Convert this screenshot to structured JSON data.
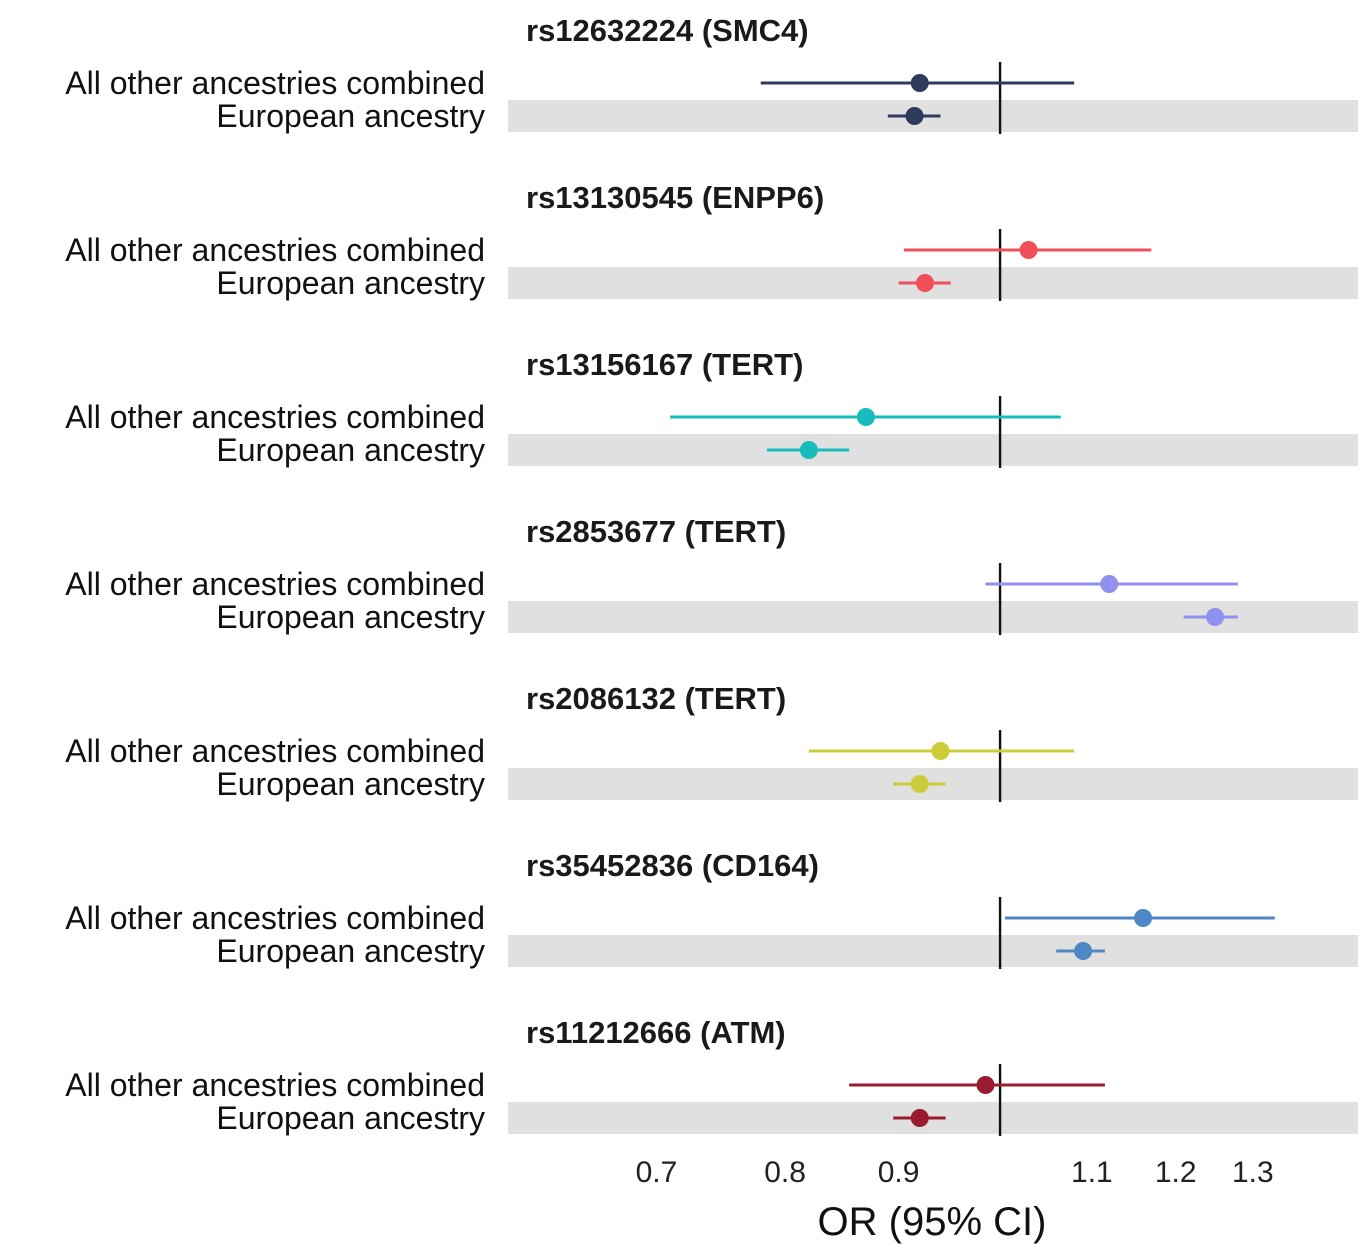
{
  "chart_data": {
    "type": "forest",
    "xlabel": "OR (95% CI)",
    "x_scale": "log",
    "xlim": [
      0.6,
      1.45
    ],
    "reference_line": 1.0,
    "x_ticks": [
      0.7,
      0.8,
      0.9,
      1.1,
      1.2,
      1.3
    ],
    "x_tick_labels": [
      "0.7",
      "0.8",
      "0.9",
      "1.1",
      "1.2",
      "1.3"
    ],
    "row_labels": [
      "All other ancestries combined",
      "European ancestry"
    ],
    "shaded_row": "European ancestry",
    "panels": [
      {
        "title": "rs12632224 (SMC4)",
        "color": "#2e3a5c",
        "rows": [
          {
            "group": "All other ancestries combined",
            "or": 0.92,
            "lo": 0.78,
            "hi": 1.08
          },
          {
            "group": "European ancestry",
            "or": 0.915,
            "lo": 0.89,
            "hi": 0.94
          }
        ]
      },
      {
        "title": "rs13130545 (ENPP6)",
        "color": "#f04e58",
        "rows": [
          {
            "group": "All other ancestries combined",
            "or": 1.03,
            "lo": 0.905,
            "hi": 1.17
          },
          {
            "group": "European ancestry",
            "or": 0.925,
            "lo": 0.9,
            "hi": 0.95
          }
        ]
      },
      {
        "title": "rs13156167 (TERT)",
        "color": "#18bcbc",
        "rows": [
          {
            "group": "All other ancestries combined",
            "or": 0.87,
            "lo": 0.71,
            "hi": 1.065
          },
          {
            "group": "European ancestry",
            "or": 0.82,
            "lo": 0.785,
            "hi": 0.855
          }
        ]
      },
      {
        "title": "rs2853677 (TERT)",
        "color": "#9090f0",
        "rows": [
          {
            "group": "All other ancestries combined",
            "or": 1.12,
            "lo": 0.985,
            "hi": 1.28
          },
          {
            "group": "European ancestry",
            "or": 1.25,
            "lo": 1.21,
            "hi": 1.28
          }
        ]
      },
      {
        "title": "rs2086132 (TERT)",
        "color": "#cccc3a",
        "rows": [
          {
            "group": "All other ancestries combined",
            "or": 0.94,
            "lo": 0.82,
            "hi": 1.08
          },
          {
            "group": "European ancestry",
            "or": 0.92,
            "lo": 0.895,
            "hi": 0.945
          }
        ]
      },
      {
        "title": "rs35452836 (CD164)",
        "color": "#4f86c6",
        "rows": [
          {
            "group": "All other ancestries combined",
            "or": 1.16,
            "lo": 1.005,
            "hi": 1.33
          },
          {
            "group": "European ancestry",
            "or": 1.09,
            "lo": 1.06,
            "hi": 1.115
          }
        ]
      },
      {
        "title": "rs11212666 (ATM)",
        "color": "#9a1b2e",
        "rows": [
          {
            "group": "All other ancestries combined",
            "or": 0.985,
            "lo": 0.855,
            "hi": 1.115
          },
          {
            "group": "European ancestry",
            "or": 0.92,
            "lo": 0.895,
            "hi": 0.945
          }
        ]
      }
    ]
  }
}
